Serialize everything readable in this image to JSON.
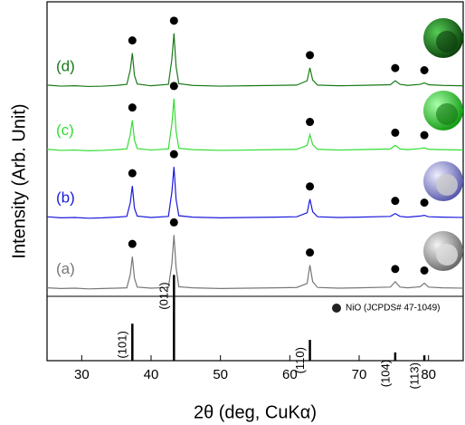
{
  "chart_data": {
    "type": "line",
    "x_label": "2θ (deg, CuKα)",
    "y_label": "Intensity (Arb. Unit)",
    "xlim": [
      25,
      85
    ],
    "xticks": [
      30,
      40,
      50,
      60,
      70,
      80
    ],
    "ylim": [
      0,
      100
    ],
    "x": [
      25,
      27,
      29,
      31,
      33,
      35,
      36.5,
      37.0,
      37.3,
      37.6,
      38,
      40,
      42.5,
      43.0,
      43.3,
      43.6,
      44,
      46,
      50,
      54,
      58,
      61,
      62.5,
      62.9,
      63.3,
      64,
      67,
      70,
      74.5,
      75.2,
      75.9,
      77,
      78.8,
      79.4,
      80,
      82,
      85
    ],
    "series": [
      {
        "name": "(a)",
        "color": "#777777",
        "values": [
          20.3,
          20.1,
          20.2,
          20,
          20.1,
          20.2,
          20.3,
          24,
          29,
          23,
          20.5,
          20.2,
          20.4,
          27,
          35,
          26,
          20.6,
          20.3,
          20.1,
          20.2,
          20.3,
          20.4,
          21.5,
          26.6,
          22,
          20.4,
          20.2,
          20.3,
          20.5,
          22,
          20.5,
          20.3,
          20.6,
          21.6,
          20.5,
          20.3,
          20.2
        ]
      },
      {
        "name": "(b)",
        "color": "#1a1adc",
        "values": [
          40.1,
          39.8,
          39.9,
          39.7,
          39.8,
          40,
          40.2,
          44,
          48.7,
          42.5,
          40.3,
          39.9,
          40.2,
          47,
          54,
          45,
          40.4,
          40,
          39.8,
          39.9,
          40,
          40.1,
          41.2,
          45,
          41.5,
          40.1,
          39.9,
          40,
          40.2,
          41,
          40.2,
          40,
          40.3,
          40.5,
          40.1,
          40,
          39.9
        ]
      },
      {
        "name": "(c)",
        "color": "#33dd33",
        "values": [
          58.9,
          58.6,
          58.7,
          58.5,
          58.6,
          58.8,
          59,
          63,
          67,
          61.5,
          59.1,
          58.7,
          59,
          66,
          73,
          64,
          59.2,
          58.8,
          58.6,
          58.7,
          58.8,
          58.9,
          60,
          63,
          60.2,
          58.9,
          58.7,
          58.8,
          59,
          60,
          59,
          58.8,
          59.1,
          59.3,
          58.9,
          58.8,
          58.7
        ]
      },
      {
        "name": "(d)",
        "color": "#1a7a1a",
        "values": [
          76.8,
          76.5,
          76.6,
          76.4,
          76.5,
          76.7,
          77,
          81,
          85.7,
          79.5,
          77.1,
          76.6,
          77,
          84,
          91.2,
          82,
          77.2,
          76.7,
          76.5,
          76.6,
          76.7,
          76.8,
          78,
          81.6,
          78.2,
          76.8,
          76.6,
          76.7,
          76.9,
          78,
          77,
          76.7,
          77,
          77.4,
          76.9,
          76.7,
          76.6
        ]
      }
    ],
    "reference": {
      "label": "NiO (JCPDS# 47-1049)",
      "color": "#000000",
      "x": [
        37.3,
        43.3,
        62.9,
        75.2,
        79.4
      ],
      "values": [
        10.3,
        23.9,
        5.8,
        2.3,
        1.5
      ],
      "hkl": [
        "(101)",
        "(012)",
        "(110)",
        "(104)",
        "(113)"
      ]
    }
  }
}
